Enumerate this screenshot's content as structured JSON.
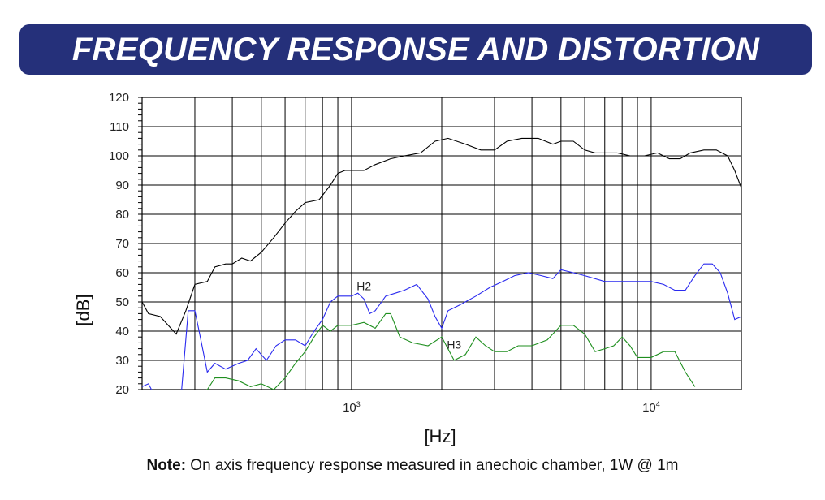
{
  "header": {
    "title": "FREQUENCY RESPONSE AND DISTORTION",
    "banner_color": "#25307a"
  },
  "note": {
    "label": "Note:",
    "text": " On axis frequency response measured in anechoic chamber, 1W @ 1m"
  },
  "chart_data": {
    "type": "line",
    "xlabel": "[Hz]",
    "ylabel": "[dB]",
    "xscale": "log",
    "xlim": [
      200,
      20000
    ],
    "ylim": [
      20,
      120
    ],
    "xticks": [
      {
        "value": 1000,
        "base": "10",
        "exp": "3"
      },
      {
        "value": 10000,
        "base": "10",
        "exp": "4"
      }
    ],
    "yticks": [
      20,
      30,
      40,
      50,
      60,
      70,
      80,
      90,
      100,
      110,
      120
    ],
    "grid": true,
    "annotations": [
      {
        "text": "H2",
        "x": 1100,
        "y": 54
      },
      {
        "text": "H3",
        "x": 2200,
        "y": 34
      }
    ],
    "series": [
      {
        "id": "response",
        "color": "#000000",
        "points": [
          [
            200,
            50
          ],
          [
            210,
            46
          ],
          [
            230,
            45
          ],
          [
            260,
            39
          ],
          [
            280,
            47
          ],
          [
            300,
            56
          ],
          [
            330,
            57
          ],
          [
            350,
            62
          ],
          [
            380,
            63
          ],
          [
            400,
            63
          ],
          [
            430,
            65
          ],
          [
            460,
            64
          ],
          [
            500,
            67
          ],
          [
            550,
            72
          ],
          [
            600,
            77
          ],
          [
            650,
            81
          ],
          [
            700,
            84
          ],
          [
            780,
            85
          ],
          [
            850,
            90
          ],
          [
            900,
            94
          ],
          [
            950,
            95
          ],
          [
            1000,
            95
          ],
          [
            1100,
            95
          ],
          [
            1200,
            97
          ],
          [
            1350,
            99
          ],
          [
            1500,
            100
          ],
          [
            1700,
            101
          ],
          [
            1900,
            105
          ],
          [
            2100,
            106
          ],
          [
            2400,
            104
          ],
          [
            2700,
            102
          ],
          [
            3000,
            102
          ],
          [
            3300,
            105
          ],
          [
            3700,
            106
          ],
          [
            4200,
            106
          ],
          [
            4700,
            104
          ],
          [
            5000,
            105
          ],
          [
            5500,
            105
          ],
          [
            6000,
            102
          ],
          [
            6500,
            101
          ],
          [
            7000,
            101
          ],
          [
            7700,
            101
          ],
          [
            8500,
            100
          ],
          [
            9500,
            100
          ],
          [
            10500,
            101
          ],
          [
            11500,
            99
          ],
          [
            12500,
            99
          ],
          [
            13500,
            101
          ],
          [
            15000,
            102
          ],
          [
            16500,
            102
          ],
          [
            18000,
            100
          ],
          [
            19000,
            95
          ],
          [
            20000,
            89
          ]
        ]
      },
      {
        "id": "H2",
        "color": "#2a2aef",
        "points": [
          [
            200,
            21
          ],
          [
            210,
            22
          ],
          [
            220,
            18
          ],
          [
            240,
            16
          ],
          [
            270,
            18
          ],
          [
            285,
            47
          ],
          [
            300,
            47
          ],
          [
            310,
            40
          ],
          [
            330,
            26
          ],
          [
            350,
            29
          ],
          [
            380,
            27
          ],
          [
            420,
            29
          ],
          [
            450,
            30
          ],
          [
            480,
            34
          ],
          [
            520,
            30
          ],
          [
            560,
            35
          ],
          [
            600,
            37
          ],
          [
            650,
            37
          ],
          [
            700,
            35
          ],
          [
            750,
            40
          ],
          [
            800,
            44
          ],
          [
            850,
            50
          ],
          [
            900,
            52
          ],
          [
            950,
            52
          ],
          [
            1000,
            52
          ],
          [
            1050,
            53
          ],
          [
            1100,
            51
          ],
          [
            1150,
            46
          ],
          [
            1200,
            47
          ],
          [
            1300,
            52
          ],
          [
            1400,
            53
          ],
          [
            1500,
            54
          ],
          [
            1650,
            56
          ],
          [
            1800,
            51
          ],
          [
            1900,
            45
          ],
          [
            2000,
            41
          ],
          [
            2100,
            47
          ],
          [
            2300,
            49
          ],
          [
            2600,
            52
          ],
          [
            2900,
            55
          ],
          [
            3200,
            57
          ],
          [
            3500,
            59
          ],
          [
            3900,
            60
          ],
          [
            4300,
            59
          ],
          [
            4700,
            58
          ],
          [
            5000,
            61
          ],
          [
            5500,
            60
          ],
          [
            6000,
            59
          ],
          [
            7000,
            57
          ],
          [
            8000,
            57
          ],
          [
            9000,
            57
          ],
          [
            10000,
            57
          ],
          [
            11000,
            56
          ],
          [
            12000,
            54
          ],
          [
            13000,
            54
          ],
          [
            14000,
            59
          ],
          [
            15000,
            63
          ],
          [
            16000,
            63
          ],
          [
            17000,
            60
          ],
          [
            18000,
            53
          ],
          [
            19000,
            44
          ],
          [
            20000,
            45
          ]
        ]
      },
      {
        "id": "H3",
        "color": "#1f8f1f",
        "points": [
          [
            300,
            18
          ],
          [
            330,
            20
          ],
          [
            350,
            24
          ],
          [
            380,
            24
          ],
          [
            420,
            23
          ],
          [
            460,
            21
          ],
          [
            500,
            22
          ],
          [
            550,
            20
          ],
          [
            600,
            24
          ],
          [
            650,
            29
          ],
          [
            700,
            33
          ],
          [
            750,
            38
          ],
          [
            800,
            42
          ],
          [
            850,
            40
          ],
          [
            900,
            42
          ],
          [
            1000,
            42
          ],
          [
            1100,
            43
          ],
          [
            1200,
            41
          ],
          [
            1300,
            46
          ],
          [
            1350,
            46
          ],
          [
            1450,
            38
          ],
          [
            1600,
            36
          ],
          [
            1800,
            35
          ],
          [
            2000,
            38
          ],
          [
            2200,
            30
          ],
          [
            2400,
            32
          ],
          [
            2600,
            38
          ],
          [
            2800,
            35
          ],
          [
            3000,
            33
          ],
          [
            3300,
            33
          ],
          [
            3600,
            35
          ],
          [
            4000,
            35
          ],
          [
            4500,
            37
          ],
          [
            5000,
            42
          ],
          [
            5500,
            42
          ],
          [
            6000,
            39
          ],
          [
            6500,
            33
          ],
          [
            7000,
            34
          ],
          [
            7500,
            35
          ],
          [
            8000,
            38
          ],
          [
            8500,
            35
          ],
          [
            9000,
            31
          ],
          [
            10000,
            31
          ],
          [
            11000,
            33
          ],
          [
            12000,
            33
          ],
          [
            13000,
            26
          ],
          [
            14000,
            21
          ]
        ]
      }
    ]
  }
}
